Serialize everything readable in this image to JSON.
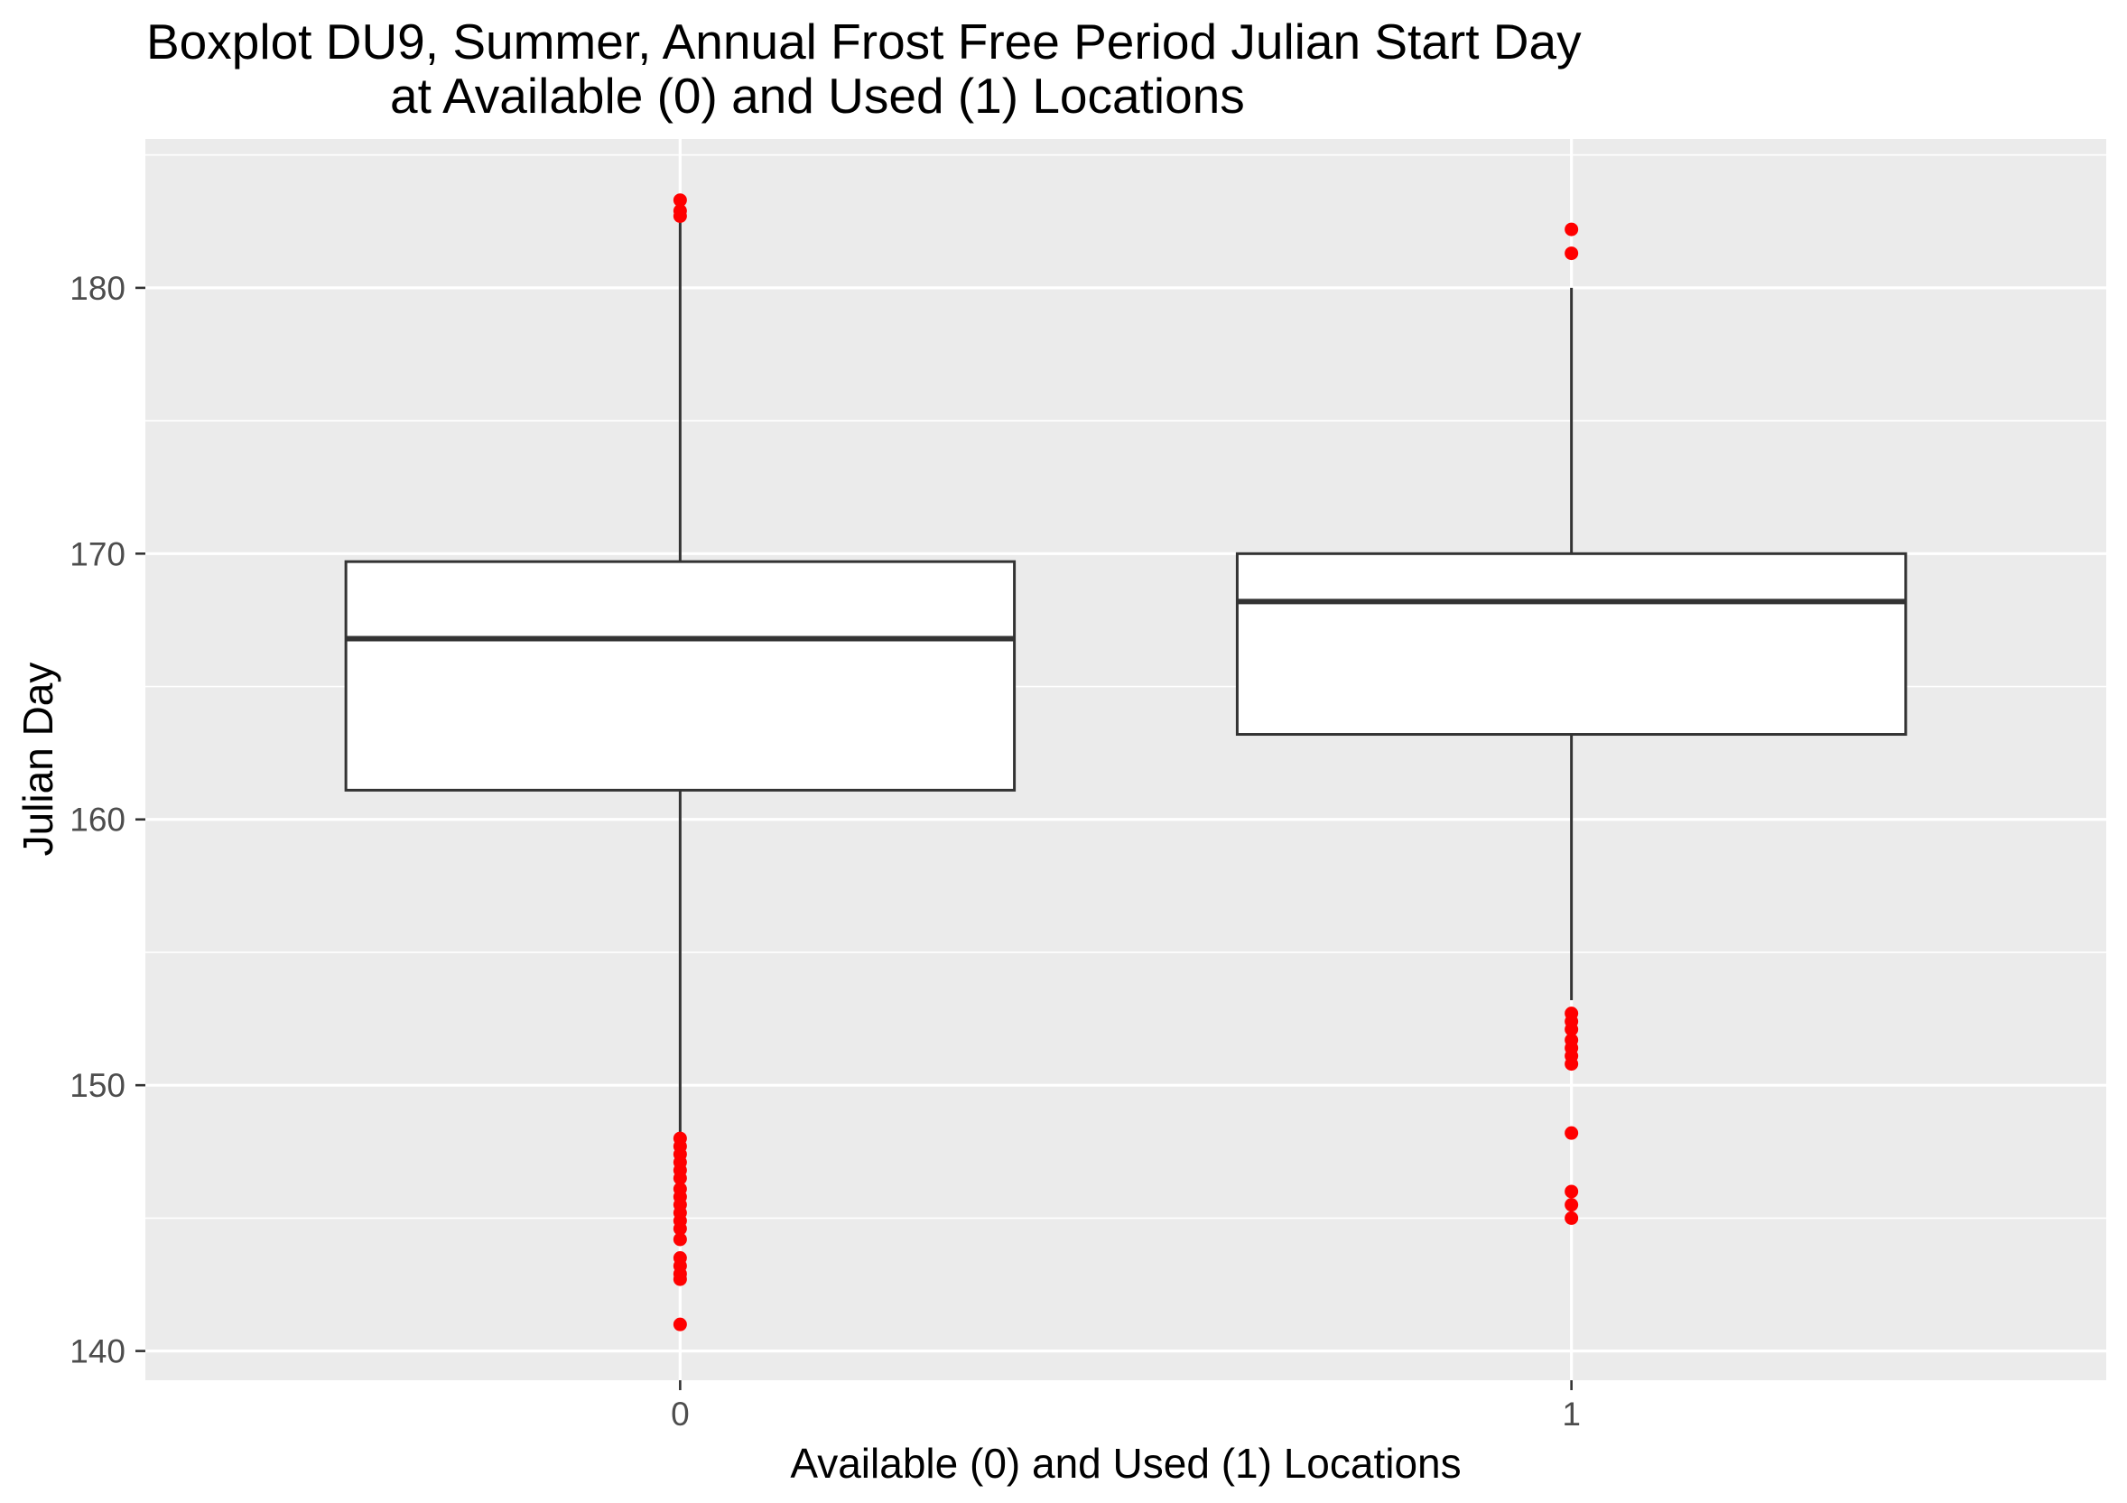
{
  "chart_data": {
    "type": "boxplot",
    "title": [
      "Boxplot DU9, Summer, Annual Frost Free Period Julian Start Day",
      "at Available (0) and Used (1) Locations"
    ],
    "xlabel": "Available (0) and Used (1) Locations",
    "ylabel": "Julian Day",
    "categories": [
      "0",
      "1"
    ],
    "yticks": [
      140,
      150,
      160,
      170,
      180
    ],
    "ylim": [
      138.9,
      185.6
    ],
    "grid": true,
    "boxes": [
      {
        "whisker_low": 148.2,
        "q1": 161.1,
        "median": 166.8,
        "q3": 169.7,
        "whisker_high": 182.6,
        "outliers": [
          183.3,
          182.9,
          182.7,
          148.0,
          147.7,
          147.4,
          147.1,
          146.8,
          146.5,
          146.1,
          145.8,
          145.5,
          145.2,
          144.9,
          144.6,
          144.2,
          143.5,
          143.2,
          142.9,
          142.7,
          141.0
        ]
      },
      {
        "whisker_low": 153.2,
        "q1": 163.2,
        "median": 168.2,
        "q3": 170.0,
        "whisker_high": 180.0,
        "outliers": [
          182.2,
          181.3,
          152.7,
          152.4,
          152.1,
          151.7,
          151.4,
          151.1,
          150.8,
          148.2,
          146.0,
          145.5,
          145.0
        ]
      }
    ],
    "colors": {
      "panel": "#EBEBEB",
      "grid": "#FFFFFF",
      "box_fill": "#FFFFFF",
      "box_line": "#333333",
      "tick_mark": "#333333",
      "outlier": "#FF0000"
    }
  }
}
